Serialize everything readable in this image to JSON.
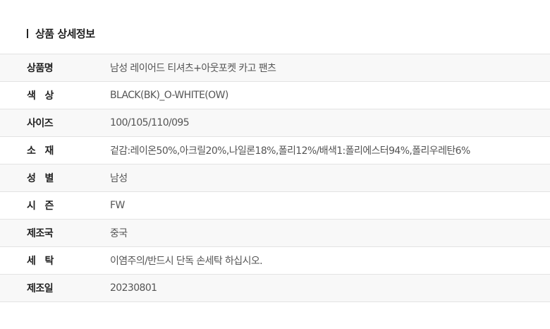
{
  "title": "상품 상세정보",
  "rows": [
    {
      "label": "상품명",
      "value": "남성 레이어드 티셔츠+아웃포켓 카고 팬츠"
    },
    {
      "label": "색   상",
      "value": "BLACK(BK)_O-WHITE(OW)"
    },
    {
      "label": "사이즈",
      "value": "100/105/110/095"
    },
    {
      "label": "소   재",
      "value": "겉감:레이온50%,아크릴20%,나일론18%,폴리12%/배색1:폴리에스터94%,폴리우레탄6%"
    },
    {
      "label": "성   별",
      "value": "남성"
    },
    {
      "label": "시   즌",
      "value": "FW"
    },
    {
      "label": "제조국",
      "value": "중국"
    },
    {
      "label": "세   탁",
      "value": "이염주의/반드시 단독 손세탁 하십시오."
    },
    {
      "label": "제조일",
      "value": "20230801"
    }
  ]
}
